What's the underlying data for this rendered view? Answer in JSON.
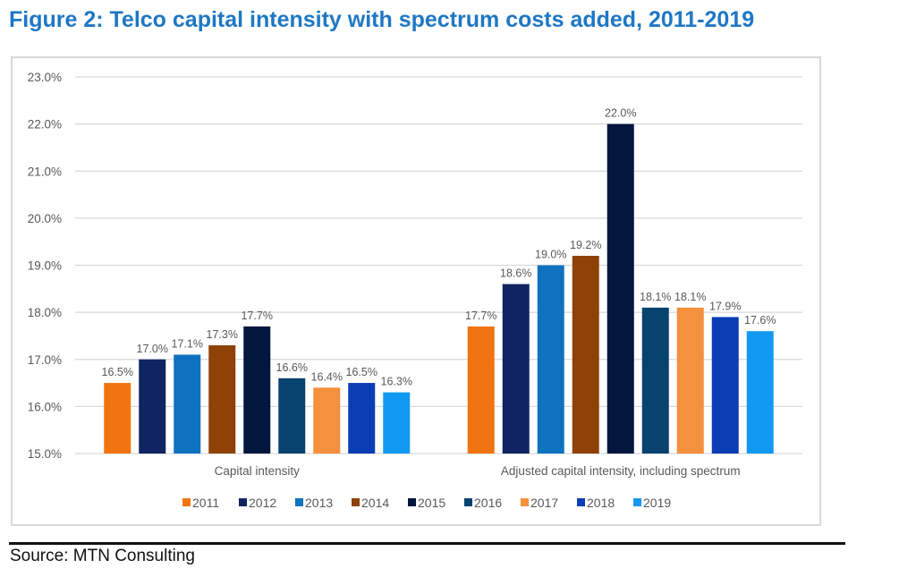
{
  "figure": {
    "title": "Figure 2: Telco capital intensity with spectrum costs added, 2011-2019",
    "source": "Source: MTN Consulting"
  },
  "chart_data": {
    "type": "bar",
    "title": "Figure 2: Telco capital intensity with spectrum costs added, 2011-2019",
    "xlabel": "",
    "ylabel": "",
    "categories": [
      "Capital intensity",
      "Adjusted capital intensity, including spectrum"
    ],
    "ylim": [
      15.0,
      23.0
    ],
    "yticks": [
      15.0,
      16.0,
      17.0,
      18.0,
      19.0,
      20.0,
      21.0,
      22.0,
      23.0
    ],
    "ytick_labels": [
      "15.0%",
      "16.0%",
      "17.0%",
      "18.0%",
      "19.0%",
      "20.0%",
      "21.0%",
      "22.0%",
      "23.0%"
    ],
    "grid": true,
    "legend_position": "bottom",
    "series": [
      {
        "name": "2011",
        "color": "#f07510",
        "values": [
          16.5,
          17.7
        ],
        "labels": [
          "16.5%",
          "17.7%"
        ]
      },
      {
        "name": "2012",
        "color": "#0f2460",
        "values": [
          17.0,
          18.6
        ],
        "labels": [
          "17.0%",
          "18.6%"
        ]
      },
      {
        "name": "2013",
        "color": "#0f72bf",
        "values": [
          17.1,
          19.0
        ],
        "labels": [
          "17.1%",
          "19.0%"
        ]
      },
      {
        "name": "2014",
        "color": "#8e4207",
        "values": [
          17.3,
          19.2
        ],
        "labels": [
          "17.3%",
          "19.2%"
        ]
      },
      {
        "name": "2015",
        "color": "#03163d",
        "values": [
          17.7,
          22.0
        ],
        "labels": [
          "17.7%",
          "22.0%"
        ]
      },
      {
        "name": "2016",
        "color": "#08426f",
        "values": [
          16.6,
          18.1
        ],
        "labels": [
          "16.6%",
          "18.1%"
        ]
      },
      {
        "name": "2017",
        "color": "#f5903c",
        "values": [
          16.4,
          18.1
        ],
        "labels": [
          "16.4%",
          "18.1%"
        ]
      },
      {
        "name": "2018",
        "color": "#0b3db5",
        "values": [
          16.5,
          17.9
        ],
        "labels": [
          "16.5%",
          "17.9%"
        ]
      },
      {
        "name": "2019",
        "color": "#1199f2",
        "values": [
          16.3,
          17.6
        ],
        "labels": [
          "16.3%",
          "17.6%"
        ]
      }
    ]
  }
}
